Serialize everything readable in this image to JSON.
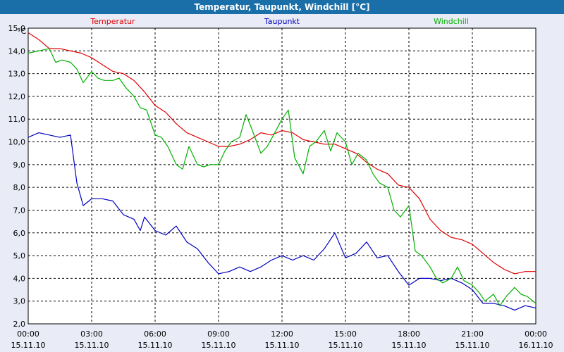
{
  "window_title": "Temperatur, Taupunkt, Windchill [°C]",
  "colors": {
    "title_bar": "#1a6fa8",
    "plot_bg": "#ffffff",
    "grid": "#000000"
  },
  "chart_data": {
    "type": "line",
    "title": "Temperatur, Taupunkt, Windchill [°C]",
    "ylabel": "°C",
    "ylim": [
      2.0,
      15.0
    ],
    "xlim": [
      0,
      24
    ],
    "y_ticks": [
      "15,0",
      "14,0",
      "13,0",
      "12,0",
      "11,0",
      "10,0",
      "9,0",
      "8,0",
      "7,0",
      "6,0",
      "5,0",
      "4,0",
      "3,0",
      "2,0"
    ],
    "x_ticks": [
      {
        "time": "00:00",
        "date": "15.11.10"
      },
      {
        "time": "03:00",
        "date": "15.11.10"
      },
      {
        "time": "06:00",
        "date": "15.11.10"
      },
      {
        "time": "09:00",
        "date": "15.11.10"
      },
      {
        "time": "12:00",
        "date": "15.11.10"
      },
      {
        "time": "15:00",
        "date": "15.11.10"
      },
      {
        "time": "18:00",
        "date": "15.11.10"
      },
      {
        "time": "21:00",
        "date": "15.11.10"
      },
      {
        "time": "00:00",
        "date": "16.11.10"
      }
    ],
    "grid": true,
    "series": [
      {
        "name": "Temperatur",
        "color": "#e00000",
        "x": [
          0,
          0.5,
          1,
          1.5,
          2,
          2.5,
          3,
          3.5,
          4,
          4.5,
          5,
          5.5,
          6,
          6.5,
          7,
          7.5,
          8,
          8.5,
          9,
          9.5,
          10,
          10.5,
          11,
          11.5,
          12,
          12.5,
          13,
          13.5,
          14,
          14.5,
          15,
          15.5,
          16,
          16.5,
          17,
          17.5,
          18,
          18.5,
          19,
          19.5,
          20,
          20.5,
          21,
          21.5,
          22,
          22.5,
          23,
          23.5,
          24
        ],
        "values": [
          14.8,
          14.5,
          14.1,
          14.1,
          14.0,
          13.9,
          13.7,
          13.4,
          13.1,
          13.0,
          12.7,
          12.2,
          11.6,
          11.3,
          10.8,
          10.4,
          10.2,
          10.0,
          9.8,
          9.8,
          9.9,
          10.1,
          10.4,
          10.3,
          10.5,
          10.4,
          10.1,
          10.0,
          9.9,
          9.9,
          9.7,
          9.5,
          9.1,
          8.8,
          8.6,
          8.1,
          8.0,
          7.5,
          6.6,
          6.1,
          5.8,
          5.7,
          5.5,
          5.1,
          4.7,
          4.4,
          4.2,
          4.3,
          4.3
        ]
      },
      {
        "name": "Taupunkt",
        "color": "#0000c0",
        "x": [
          0,
          0.5,
          1,
          1.5,
          2,
          2.3,
          2.6,
          3,
          3.5,
          4,
          4.5,
          5,
          5.3,
          5.5,
          6,
          6.5,
          7,
          7.5,
          8,
          8.5,
          9,
          9.5,
          10,
          10.5,
          11,
          11.5,
          12,
          12.5,
          13,
          13.5,
          14,
          14.5,
          15,
          15.5,
          16,
          16.5,
          17,
          17.5,
          18,
          18.5,
          19,
          19.5,
          20,
          20.5,
          21,
          21.5,
          22,
          22.5,
          23,
          23.5,
          24
        ],
        "values": [
          10.2,
          10.4,
          10.3,
          10.2,
          10.3,
          8.2,
          7.2,
          7.5,
          7.5,
          7.4,
          6.8,
          6.6,
          6.1,
          6.7,
          6.1,
          5.9,
          6.3,
          5.6,
          5.3,
          4.7,
          4.2,
          4.3,
          4.5,
          4.3,
          4.5,
          4.8,
          5.0,
          4.8,
          5.0,
          4.8,
          5.3,
          6.0,
          4.9,
          5.1,
          5.6,
          4.9,
          5.0,
          4.3,
          3.7,
          4.0,
          4.0,
          3.9,
          4.0,
          3.8,
          3.5,
          2.9,
          2.9,
          2.8,
          2.6,
          2.8,
          2.7
        ]
      },
      {
        "name": "Windchill",
        "color": "#00b000",
        "x": [
          0,
          0.5,
          1,
          1.3,
          1.6,
          2,
          2.3,
          2.6,
          3,
          3.3,
          3.6,
          4,
          4.3,
          4.6,
          5,
          5.3,
          5.6,
          6,
          6.3,
          6.6,
          7,
          7.3,
          7.6,
          8,
          8.3,
          8.6,
          9,
          9.3,
          9.6,
          10,
          10.3,
          10.6,
          11,
          11.3,
          11.6,
          12,
          12.3,
          12.6,
          13,
          13.3,
          13.6,
          14,
          14.3,
          14.6,
          15,
          15.3,
          15.6,
          16,
          16.3,
          16.6,
          17,
          17.3,
          17.6,
          18,
          18.3,
          18.6,
          19,
          19.3,
          19.6,
          20,
          20.3,
          20.6,
          21,
          21.3,
          21.6,
          22,
          22.3,
          22.6,
          23,
          23.3,
          23.6,
          24
        ],
        "values": [
          13.9,
          14.0,
          14.1,
          13.5,
          13.6,
          13.5,
          13.2,
          12.6,
          13.1,
          12.8,
          12.7,
          12.7,
          12.8,
          12.4,
          12.0,
          11.5,
          11.4,
          10.3,
          10.2,
          9.8,
          9.0,
          8.8,
          9.8,
          9.0,
          8.9,
          9.0,
          9.0,
          9.6,
          10.0,
          10.2,
          11.2,
          10.5,
          9.5,
          9.8,
          10.3,
          11.0,
          11.4,
          9.3,
          8.6,
          9.8,
          10.0,
          10.5,
          9.6,
          10.4,
          10.0,
          9.0,
          9.5,
          9.2,
          8.6,
          8.2,
          8.0,
          7.0,
          6.7,
          7.2,
          5.2,
          5.0,
          4.5,
          4.0,
          3.8,
          4.0,
          4.5,
          3.9,
          3.7,
          3.4,
          3.0,
          3.3,
          2.8,
          3.2,
          3.6,
          3.3,
          3.2,
          2.9
        ]
      }
    ]
  }
}
